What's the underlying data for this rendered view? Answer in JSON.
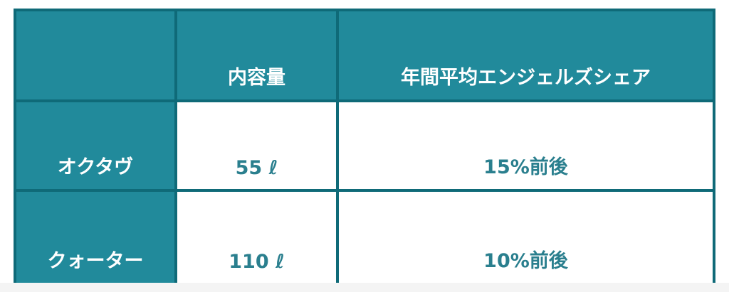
{
  "table": {
    "headers": [
      "",
      "内容量",
      "年間平均エンジェルズシェア"
    ],
    "rows": [
      {
        "label": "オクタヴ",
        "capacity": "55 ℓ",
        "angels_share": "15%前後"
      },
      {
        "label": "クォーター",
        "capacity": "110 ℓ",
        "angels_share": "10%前後"
      }
    ]
  },
  "colors": {
    "header_bg": "#218a9b",
    "border": "#0f6a78",
    "value_text": "#2a7f8e"
  }
}
